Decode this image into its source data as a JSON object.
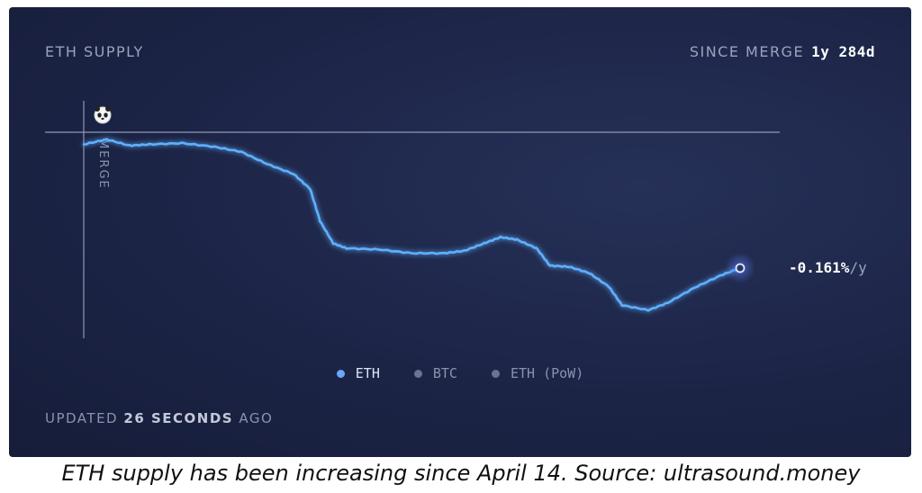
{
  "header": {
    "title": "ETH SUPPLY",
    "since_label": "SINCE MERGE",
    "since_value": "1y 284d"
  },
  "annotations": {
    "merge_label": "MERGE",
    "rate_value": "-0.161%",
    "rate_unit": "/y"
  },
  "legend": {
    "items": [
      {
        "label": "ETH",
        "active": true
      },
      {
        "label": "BTC",
        "active": false
      },
      {
        "label": "ETH (PoW)",
        "active": false
      }
    ]
  },
  "footer": {
    "updated_prefix": "UPDATED",
    "updated_value": "26 SECONDS",
    "updated_suffix": "AGO"
  },
  "caption": "ETH supply has been increasing since April 14. Source: ultrasound.money",
  "colors": {
    "line": "#5fb0ff",
    "card_bg": "#1c2446",
    "baseline": "#8f98b6"
  },
  "chart_data": {
    "type": "line",
    "title": "ETH SUPPLY",
    "xlabel": "",
    "ylabel": "",
    "x_range": [
      0,
      1
    ],
    "y_range": [
      0.7,
      -0.1
    ],
    "grid": false,
    "series": [
      {
        "name": "ETH",
        "values": [
          [
            0.0,
            0.0
          ],
          [
            0.035,
            -0.02
          ],
          [
            0.07,
            0.005
          ],
          [
            0.1,
            0.0
          ],
          [
            0.15,
            -0.005
          ],
          [
            0.2,
            0.01
          ],
          [
            0.24,
            0.03
          ],
          [
            0.28,
            0.08
          ],
          [
            0.32,
            0.12
          ],
          [
            0.345,
            0.18
          ],
          [
            0.36,
            0.31
          ],
          [
            0.38,
            0.4
          ],
          [
            0.4,
            0.42
          ],
          [
            0.45,
            0.425
          ],
          [
            0.5,
            0.44
          ],
          [
            0.55,
            0.44
          ],
          [
            0.58,
            0.43
          ],
          [
            0.61,
            0.4
          ],
          [
            0.635,
            0.375
          ],
          [
            0.66,
            0.385
          ],
          [
            0.69,
            0.42
          ],
          [
            0.71,
            0.49
          ],
          [
            0.74,
            0.495
          ],
          [
            0.77,
            0.52
          ],
          [
            0.8,
            0.575
          ],
          [
            0.82,
            0.65
          ],
          [
            0.86,
            0.67
          ],
          [
            0.89,
            0.64
          ],
          [
            0.93,
            0.58
          ],
          [
            0.97,
            0.53
          ],
          [
            1.0,
            0.5
          ]
        ]
      }
    ],
    "markers": [
      {
        "label": "MERGE",
        "x": 0.0
      }
    ],
    "end_value_label": "-0.161%/y",
    "legend_position": "bottom-center"
  }
}
